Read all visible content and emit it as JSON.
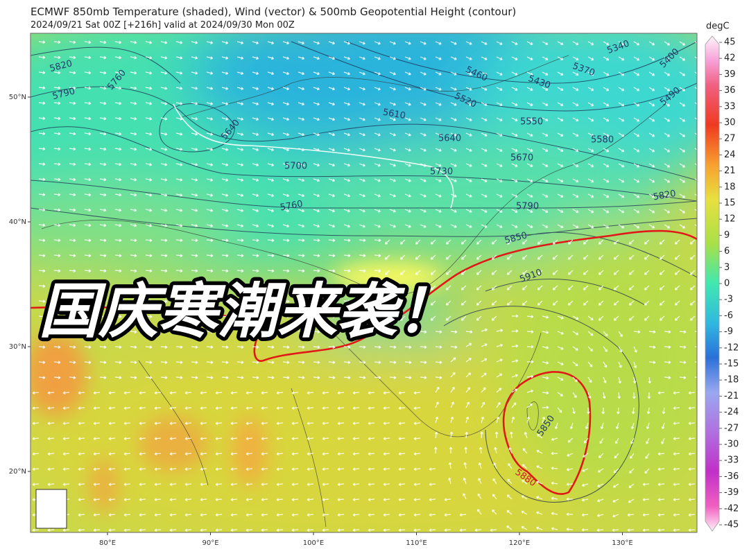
{
  "header": {
    "title": "ECMWF 850mb Temperature (shaded), Wind (vector) & 500mb Geopotential Height (contour)",
    "subtitle": "2024/09/21 Sat 00Z [+216h] valid at 2024/09/30 Mon 00Z"
  },
  "colorbar": {
    "unit": "degC",
    "ticks": [
      45,
      42,
      39,
      36,
      33,
      30,
      27,
      24,
      21,
      18,
      15,
      12,
      9,
      6,
      3,
      0,
      -3,
      -6,
      -9,
      -12,
      -15,
      -18,
      -21,
      -24,
      -27,
      -30,
      -33,
      -36,
      -39,
      -42,
      -45
    ]
  },
  "map": {
    "lat_ticks": [
      {
        "value": 50,
        "label": "50°N"
      },
      {
        "value": 40,
        "label": "40°N"
      },
      {
        "value": 30,
        "label": "30°N"
      },
      {
        "value": 20,
        "label": "20°N"
      }
    ],
    "lon_ticks": [
      {
        "value": 80,
        "label": "80°E"
      },
      {
        "value": 90,
        "label": "90°E"
      },
      {
        "value": 100,
        "label": "100°E"
      },
      {
        "value": 110,
        "label": "110°E"
      },
      {
        "value": 120,
        "label": "120°E"
      },
      {
        "value": 130,
        "label": "130°E"
      }
    ],
    "contour_labels": [
      "5820",
      "5790",
      "5760",
      "5640",
      "5610",
      "5700",
      "5730",
      "5760",
      "5460",
      "5430",
      "5520",
      "5370",
      "5340",
      "5400",
      "5490",
      "5550",
      "5640",
      "5580",
      "5670",
      "5790",
      "5820",
      "5850",
      "5910",
      "5850",
      "5880"
    ]
  },
  "overlay": {
    "text": "国庆寒潮来袭！"
  }
}
